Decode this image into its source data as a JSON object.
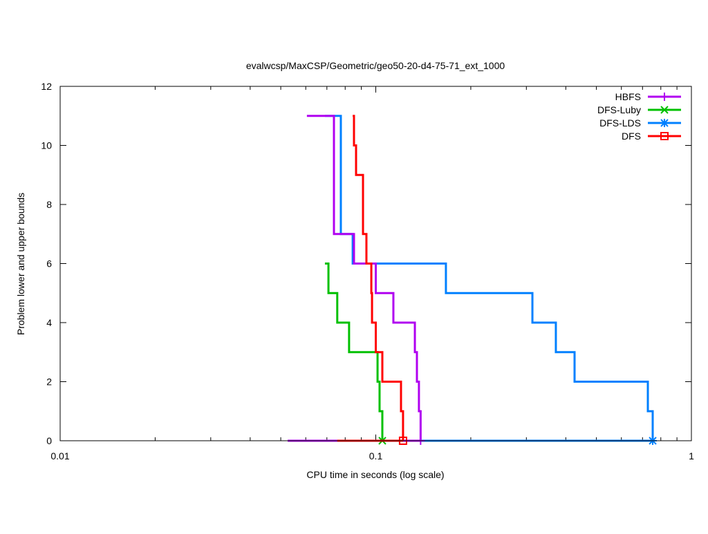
{
  "chart_data": {
    "type": "line",
    "title": "evalwcsp/MaxCSP/Geometric/geo50-20-d4-75-71_ext_1000",
    "xlabel": "CPU time in seconds (log scale)",
    "ylabel": "Problem lower and upper bounds",
    "xscale": "log",
    "xlim": [
      0.01,
      1
    ],
    "ylim": [
      0,
      12
    ],
    "xticks": [
      {
        "v": 0.01,
        "label": "0.01"
      },
      {
        "v": 0.1,
        "label": "0.1"
      },
      {
        "v": 1,
        "label": "1"
      }
    ],
    "yticks": [
      {
        "v": 0,
        "label": "0"
      },
      {
        "v": 2,
        "label": "2"
      },
      {
        "v": 4,
        "label": "4"
      },
      {
        "v": 6,
        "label": "6"
      },
      {
        "v": 8,
        "label": "8"
      },
      {
        "v": 10,
        "label": "10"
      },
      {
        "v": 12,
        "label": "12"
      }
    ],
    "legend_position": "top-right",
    "series": [
      {
        "name": "HBFS",
        "color": "#b000f0",
        "marker": "plus",
        "upper": [
          [
            0.0605,
            11
          ],
          [
            0.0737,
            7
          ],
          [
            0.0853,
            6
          ],
          [
            0.1,
            5
          ],
          [
            0.1137,
            4
          ],
          [
            0.133,
            3
          ],
          [
            0.135,
            2
          ],
          [
            0.137,
            1
          ],
          [
            0.1387,
            0
          ]
        ],
        "lower": [
          0.0526,
          0.1387
        ]
      },
      {
        "name": "DFS-Luby",
        "color": "#00c000",
        "marker": "x",
        "upper": [
          [
            0.069,
            6
          ],
          [
            0.0708,
            5
          ],
          [
            0.0755,
            4
          ],
          [
            0.0823,
            3
          ],
          [
            0.1013,
            2
          ],
          [
            0.1028,
            1
          ],
          [
            0.1049,
            0
          ]
        ],
        "lower": [
          0.069,
          0.1049
        ]
      },
      {
        "name": "DFS-LDS",
        "color": "#0080ff",
        "marker": "star",
        "upper": [
          [
            0.069,
            11
          ],
          [
            0.0775,
            7
          ],
          [
            0.0845,
            6
          ],
          [
            0.1668,
            5
          ],
          [
            0.3135,
            4
          ],
          [
            0.372,
            3
          ],
          [
            0.4264,
            2
          ],
          [
            0.7278,
            1
          ],
          [
            0.754,
            0
          ]
        ],
        "lower": [
          0.069,
          0.754
        ]
      },
      {
        "name": "DFS",
        "color": "#ff0000",
        "marker": "square",
        "upper": [
          [
            0.0845,
            11
          ],
          [
            0.0853,
            10
          ],
          [
            0.0866,
            9
          ],
          [
            0.0911,
            7
          ],
          [
            0.0934,
            6
          ],
          [
            0.0968,
            5
          ],
          [
            0.0973,
            4
          ],
          [
            0.1,
            3
          ],
          [
            0.1049,
            2
          ],
          [
            0.1202,
            1
          ],
          [
            0.122,
            0
          ]
        ],
        "lower": [
          0.0755,
          0.122
        ]
      }
    ],
    "draw_order": [
      2,
      1,
      0,
      3
    ]
  }
}
